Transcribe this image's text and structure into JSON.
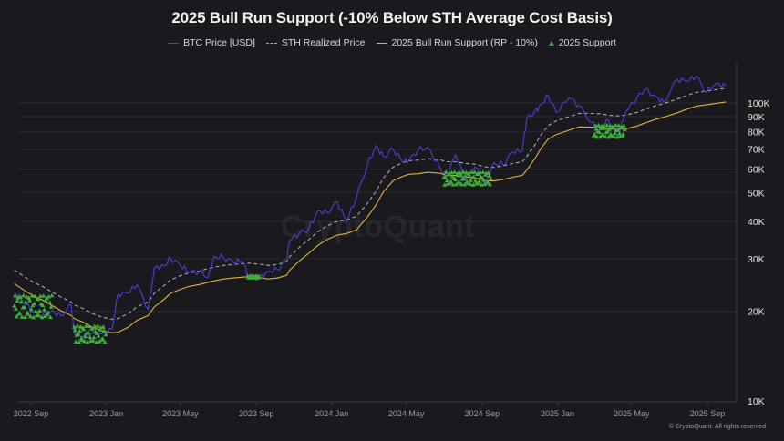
{
  "title": "2025 Bull Run Support (-10% Below STH Average Cost Basis)",
  "legend": [
    {
      "label": "BTC Price [USD]",
      "color": "#4b3fd6",
      "style": "solid"
    },
    {
      "label": "STH Realized Price",
      "color": "#a9a9b3",
      "style": "dashed"
    },
    {
      "label": "2025 Bull Run Support (RP - 10%)",
      "color": "#e2b13c",
      "style": "solid"
    },
    {
      "label": "2025 Support",
      "color": "#3fae3a",
      "style": "triangle"
    }
  ],
  "watermark": "CryptoQuant",
  "copyright": "© CryptoQuant. All rights reserved",
  "colors": {
    "background": "#1a1a1e",
    "grid": "#2a2a30",
    "price": "#4b3fd6",
    "sth": "#a9a9b3",
    "support": "#e2b13c",
    "marker": "#3fae3a"
  },
  "chart_data": {
    "type": "line",
    "title": "2025 Bull Run Support (-10% Below STH Average Cost Basis)",
    "xlabel": "",
    "ylabel": "",
    "yscale": "log",
    "ylim": [
      10000,
      125000
    ],
    "y_ticks": [
      "10K",
      "20K",
      "30K",
      "40K",
      "50K",
      "60K",
      "70K",
      "80K",
      "90K",
      "100K"
    ],
    "y_tick_values": [
      10000,
      20000,
      30000,
      40000,
      50000,
      60000,
      70000,
      80000,
      90000,
      100000
    ],
    "x_ticks": [
      "2022 Sep",
      "2023 Jan",
      "2023 May",
      "2023 Sep",
      "2024 Jan",
      "2024 May",
      "2024 Sep",
      "2025 Jan",
      "2025 May",
      "2025 Sep"
    ],
    "legend_position": "top",
    "grid": true,
    "x": [
      "2022-08-05",
      "2022-08-20",
      "2022-09-05",
      "2022-09-20",
      "2022-10-05",
      "2022-10-20",
      "2022-11-05",
      "2022-11-10",
      "2022-11-25",
      "2022-12-10",
      "2022-12-25",
      "2023-01-10",
      "2023-01-20",
      "2023-02-05",
      "2023-02-20",
      "2023-03-10",
      "2023-03-20",
      "2023-04-05",
      "2023-04-15",
      "2023-05-01",
      "2023-05-15",
      "2023-06-01",
      "2023-06-15",
      "2023-06-25",
      "2023-07-10",
      "2023-07-25",
      "2023-08-10",
      "2023-08-20",
      "2023-09-05",
      "2023-09-20",
      "2023-10-05",
      "2023-10-20",
      "2023-10-25",
      "2023-11-10",
      "2023-11-25",
      "2023-12-10",
      "2023-12-25",
      "2024-01-10",
      "2024-01-25",
      "2024-02-10",
      "2024-02-28",
      "2024-03-13",
      "2024-03-25",
      "2024-04-10",
      "2024-04-25",
      "2024-05-05",
      "2024-05-20",
      "2024-06-05",
      "2024-06-25",
      "2024-07-05",
      "2024-07-20",
      "2024-08-05",
      "2024-08-20",
      "2024-09-06",
      "2024-09-20",
      "2024-10-05",
      "2024-10-20",
      "2024-11-05",
      "2024-11-12",
      "2024-11-25",
      "2024-12-05",
      "2024-12-17",
      "2024-12-30",
      "2025-01-20",
      "2025-02-05",
      "2025-02-25",
      "2025-03-10",
      "2025-03-25",
      "2025-04-08",
      "2025-04-22",
      "2025-05-10",
      "2025-05-22",
      "2025-06-10",
      "2025-06-22",
      "2025-07-14",
      "2025-07-30",
      "2025-08-14",
      "2025-08-30",
      "2025-09-15",
      "2025-10-01"
    ],
    "series": [
      {
        "name": "BTC Price [USD]",
        "values": [
          23200,
          21500,
          19800,
          19400,
          20100,
          19300,
          21000,
          16800,
          16500,
          17100,
          16800,
          17400,
          22800,
          23000,
          24500,
          20300,
          28000,
          28400,
          30200,
          28500,
          27000,
          27200,
          26000,
          30500,
          30300,
          29300,
          29400,
          26100,
          25800,
          27200,
          27600,
          29700,
          34500,
          36500,
          37800,
          43500,
          42800,
          46500,
          40000,
          48000,
          62000,
          72000,
          66000,
          70000,
          63500,
          64000,
          69500,
          71000,
          60500,
          56500,
          67000,
          55000,
          61000,
          53500,
          63000,
          62000,
          68500,
          69000,
          88000,
          93500,
          98500,
          106000,
          93000,
          104000,
          98000,
          86000,
          82000,
          87500,
          76500,
          93500,
          104000,
          111000,
          105000,
          100500,
          120000,
          118000,
          123000,
          108500,
          116500,
          114000
        ]
      },
      {
        "name": "STH Realized Price",
        "values": [
          27500,
          26200,
          25000,
          24200,
          23200,
          22300,
          21500,
          21000,
          20400,
          19600,
          19100,
          18800,
          18900,
          19600,
          20700,
          21500,
          23000,
          24400,
          25500,
          26300,
          26900,
          27300,
          27800,
          28100,
          28500,
          28700,
          28900,
          29000,
          28800,
          28500,
          28700,
          29300,
          30500,
          32800,
          34800,
          37000,
          38700,
          40000,
          40500,
          41600,
          46000,
          50500,
          56000,
          61000,
          63000,
          64000,
          64300,
          65000,
          64500,
          63500,
          63500,
          62700,
          62300,
          61000,
          60800,
          61500,
          62600,
          63500,
          66000,
          72000,
          78000,
          84000,
          87000,
          90000,
          92300,
          92200,
          92000,
          91000,
          90500,
          91000,
          93000,
          95000,
          98000,
          99500,
          103000,
          106000,
          108500,
          109500,
          110800,
          112000
        ]
      },
      {
        "name": "2025 Bull Run Support (RP - 10%)",
        "values": [
          24750,
          23580,
          22500,
          21780,
          20880,
          20070,
          19350,
          18900,
          18360,
          17640,
          17190,
          16920,
          17010,
          17640,
          18630,
          19350,
          20700,
          21960,
          22950,
          23670,
          24210,
          24570,
          25020,
          25290,
          25650,
          25830,
          26010,
          26100,
          25920,
          25650,
          25830,
          26370,
          27450,
          29520,
          31320,
          33300,
          34830,
          36000,
          36450,
          37440,
          41400,
          45450,
          50400,
          54900,
          56700,
          57600,
          57870,
          58500,
          58050,
          57150,
          57150,
          56430,
          56070,
          54900,
          54720,
          55350,
          56340,
          57150,
          59400,
          64800,
          70200,
          75600,
          78300,
          81000,
          83070,
          82980,
          82800,
          81900,
          81450,
          81900,
          83700,
          85500,
          88200,
          89550,
          92700,
          95400,
          97650,
          98550,
          99720,
          100800
        ]
      }
    ],
    "markers": {
      "name": "2025 Support",
      "shape": "triangle",
      "clusters": [
        {
          "range": [
            "2022-08-05",
            "2022-10-05"
          ],
          "approx_values": [
            19000,
            22500
          ]
        },
        {
          "range": [
            "2022-11-10",
            "2022-12-31"
          ],
          "approx_values": [
            15700,
            17800
          ]
        },
        {
          "range": [
            "2023-08-18",
            "2023-09-05"
          ],
          "approx_values": [
            25800,
            26200
          ]
        },
        {
          "range": [
            "2024-07-01",
            "2024-09-15"
          ],
          "approx_values": [
            53000,
            58500
          ]
        },
        {
          "range": [
            "2025-03-01",
            "2025-04-20"
          ],
          "approx_values": [
            76500,
            84000
          ]
        }
      ]
    }
  }
}
